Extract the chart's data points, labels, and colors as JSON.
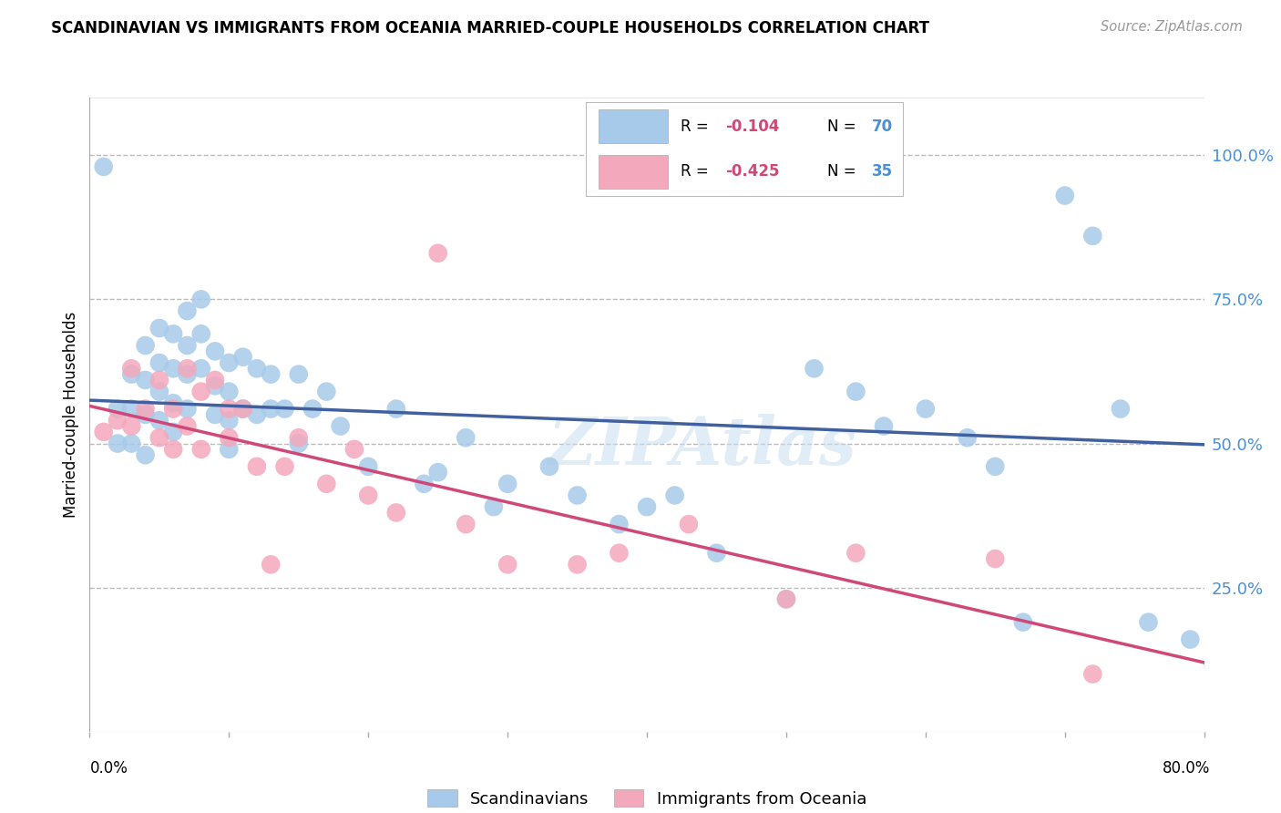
{
  "title": "SCANDINAVIAN VS IMMIGRANTS FROM OCEANIA MARRIED-COUPLE HOUSEHOLDS CORRELATION CHART",
  "source": "Source: ZipAtlas.com",
  "ylabel": "Married-couple Households",
  "ytick_labels": [
    "100.0%",
    "75.0%",
    "50.0%",
    "25.0%"
  ],
  "ytick_values": [
    1.0,
    0.75,
    0.5,
    0.25
  ],
  "xlim": [
    0.0,
    0.8
  ],
  "ylim": [
    0.0,
    1.1
  ],
  "blue_R": "-0.104",
  "blue_N": "70",
  "pink_R": "-0.425",
  "pink_N": "35",
  "legend_labels": [
    "Scandinavians",
    "Immigrants from Oceania"
  ],
  "blue_color": "#A8CAEA",
  "pink_color": "#F4A8BC",
  "blue_line_color": "#4060A0",
  "pink_line_color": "#D04878",
  "background_color": "#FFFFFF",
  "grid_color": "#BBBBBB",
  "watermark": "ZIPAtlas",
  "blue_line_start": 0.575,
  "blue_line_end": 0.498,
  "pink_line_start": 0.565,
  "pink_line_end": 0.12,
  "scandinavian_x": [
    0.01,
    0.02,
    0.02,
    0.03,
    0.03,
    0.03,
    0.04,
    0.04,
    0.04,
    0.04,
    0.05,
    0.05,
    0.05,
    0.05,
    0.06,
    0.06,
    0.06,
    0.06,
    0.07,
    0.07,
    0.07,
    0.07,
    0.08,
    0.08,
    0.08,
    0.09,
    0.09,
    0.09,
    0.1,
    0.1,
    0.1,
    0.1,
    0.11,
    0.11,
    0.12,
    0.12,
    0.13,
    0.13,
    0.14,
    0.15,
    0.15,
    0.16,
    0.17,
    0.18,
    0.2,
    0.22,
    0.24,
    0.25,
    0.27,
    0.29,
    0.3,
    0.33,
    0.35,
    0.38,
    0.4,
    0.42,
    0.45,
    0.5,
    0.52,
    0.55,
    0.57,
    0.6,
    0.63,
    0.65,
    0.67,
    0.7,
    0.72,
    0.74,
    0.76,
    0.79
  ],
  "scandinavian_y": [
    0.98,
    0.56,
    0.5,
    0.62,
    0.56,
    0.5,
    0.67,
    0.61,
    0.55,
    0.48,
    0.7,
    0.64,
    0.59,
    0.54,
    0.69,
    0.63,
    0.57,
    0.52,
    0.73,
    0.67,
    0.62,
    0.56,
    0.75,
    0.69,
    0.63,
    0.66,
    0.6,
    0.55,
    0.64,
    0.59,
    0.54,
    0.49,
    0.65,
    0.56,
    0.63,
    0.55,
    0.62,
    0.56,
    0.56,
    0.62,
    0.5,
    0.56,
    0.59,
    0.53,
    0.46,
    0.56,
    0.43,
    0.45,
    0.51,
    0.39,
    0.43,
    0.46,
    0.41,
    0.36,
    0.39,
    0.41,
    0.31,
    0.23,
    0.63,
    0.59,
    0.53,
    0.56,
    0.51,
    0.46,
    0.19,
    0.93,
    0.86,
    0.56,
    0.19,
    0.16
  ],
  "oceania_x": [
    0.01,
    0.02,
    0.03,
    0.03,
    0.04,
    0.05,
    0.05,
    0.06,
    0.06,
    0.07,
    0.07,
    0.08,
    0.08,
    0.09,
    0.1,
    0.1,
    0.11,
    0.12,
    0.13,
    0.14,
    0.15,
    0.17,
    0.19,
    0.2,
    0.22,
    0.25,
    0.27,
    0.3,
    0.35,
    0.38,
    0.43,
    0.5,
    0.55,
    0.65,
    0.72
  ],
  "oceania_y": [
    0.52,
    0.54,
    0.63,
    0.53,
    0.56,
    0.61,
    0.51,
    0.56,
    0.49,
    0.63,
    0.53,
    0.59,
    0.49,
    0.61,
    0.51,
    0.56,
    0.56,
    0.46,
    0.29,
    0.46,
    0.51,
    0.43,
    0.49,
    0.41,
    0.38,
    0.83,
    0.36,
    0.29,
    0.29,
    0.31,
    0.36,
    0.23,
    0.31,
    0.3,
    0.1
  ]
}
